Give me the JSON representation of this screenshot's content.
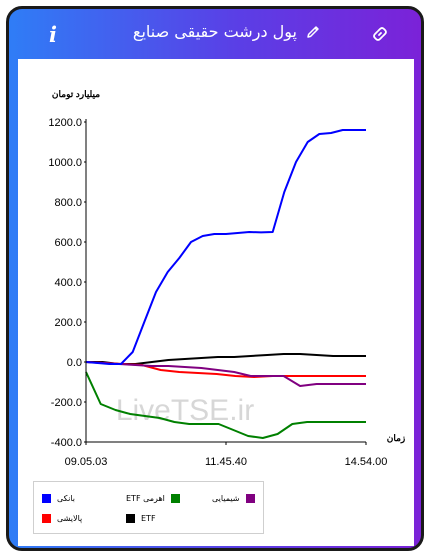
{
  "header": {
    "title": "پول درشت حقیقی صنایع",
    "info_glyph": "i",
    "icons": [
      "info-icon",
      "pencil-icon",
      "link-icon"
    ]
  },
  "chart_data": {
    "type": "line",
    "ylabel": "میلیارد تومان",
    "xlabel": "زمان",
    "y_ticks": [
      "1200.0",
      "1000.0",
      "800.0",
      "600.0",
      "400.0",
      "200.0",
      "0.0",
      "-200.0",
      "-400.0"
    ],
    "y_tick_values": [
      1200,
      1000,
      800,
      600,
      400,
      200,
      0,
      -200,
      -400
    ],
    "ylim": [
      -400,
      1200
    ],
    "x_ticks": [
      "09.05.03",
      "11.45.40",
      "14.54.00"
    ],
    "watermark": "LiveTSE.ir",
    "grid": false,
    "legend_position": "bottom-left",
    "series": [
      {
        "name": "بانکی",
        "color": "#0000ff",
        "values": [
          0,
          -5,
          -10,
          -10,
          50,
          200,
          350,
          450,
          520,
          600,
          630,
          640,
          640,
          645,
          650,
          648,
          650,
          850,
          1000,
          1100,
          1140,
          1145,
          1160,
          1160,
          1160
        ]
      },
      {
        "name": "ETF اهرمی",
        "color": "#008000",
        "values": [
          -50,
          -210,
          -240,
          -260,
          -270,
          -280,
          -300,
          -310,
          -310,
          -310,
          -340,
          -370,
          -380,
          -360,
          -310,
          -300,
          -300,
          -300,
          -300,
          -300
        ]
      },
      {
        "name": "شیمیایی",
        "color": "#800080",
        "values": [
          0,
          -5,
          -10,
          -15,
          -20,
          -20,
          -25,
          -30,
          -40,
          -50,
          -70,
          -70,
          -70,
          -120,
          -110,
          -110,
          -110,
          -110
        ]
      },
      {
        "name": "پالایشی",
        "color": "#ff0000",
        "values": [
          0,
          -5,
          -10,
          -15,
          -40,
          -50,
          -55,
          -60,
          -70,
          -75,
          -70,
          -70,
          -70,
          -70,
          -70,
          -70
        ]
      },
      {
        "name": "ETF",
        "color": "#000000",
        "values": [
          0,
          0,
          -10,
          -10,
          0,
          10,
          15,
          20,
          25,
          25,
          30,
          35,
          40,
          40,
          35,
          30,
          30,
          30
        ]
      }
    ]
  }
}
